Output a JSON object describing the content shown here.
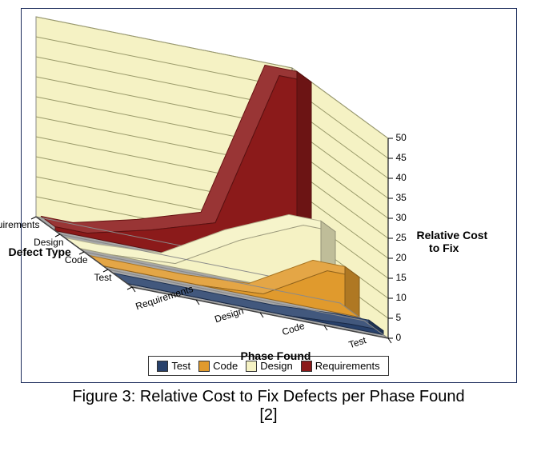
{
  "chart": {
    "type": "3d-area",
    "x_axis": {
      "label": "Phase Found",
      "categories": [
        "Requirements",
        "Design",
        "Code",
        "Test"
      ]
    },
    "depth_axis": {
      "label": "Defect Type",
      "categories": [
        "Test",
        "Code",
        "Design",
        "Requirements"
      ]
    },
    "z_axis": {
      "label": "Relative Cost\nto Fix",
      "min": 0,
      "max": 50,
      "tick_step": 5,
      "ticks": [
        0,
        5,
        10,
        15,
        20,
        25,
        30,
        35,
        40,
        45,
        50
      ]
    },
    "series": [
      {
        "name": "Test",
        "color": "#28416b",
        "values": [
          0,
          0,
          0,
          1
        ]
      },
      {
        "name": "Code",
        "color": "#e09a2d",
        "values": [
          0,
          0,
          1,
          10
        ]
      },
      {
        "name": "Design",
        "color": "#f5f2c4",
        "values": [
          0,
          1,
          10,
          17
        ]
      },
      {
        "name": "Requirements",
        "color": "#8b1a1a",
        "values": [
          1,
          5,
          10,
          50
        ]
      }
    ],
    "wall_color": "#f5f2c4",
    "floor_color": "#a8a8a8",
    "grid_color": "#9a9a6a",
    "band_width": 0.6,
    "label_fontsize": 12,
    "axis_title_fontsize": 14
  },
  "legend": {
    "items": [
      {
        "swatch": "#28416b",
        "label": "Test"
      },
      {
        "swatch": "#e09a2d",
        "label": "Code"
      },
      {
        "swatch": "#f5f2c4",
        "label": "Design"
      },
      {
        "swatch": "#8b1a1a",
        "label": "Requirements"
      }
    ]
  },
  "caption": {
    "line1": "Figure 3: Relative Cost to Fix Defects per Phase Found",
    "line2": "[2]"
  }
}
